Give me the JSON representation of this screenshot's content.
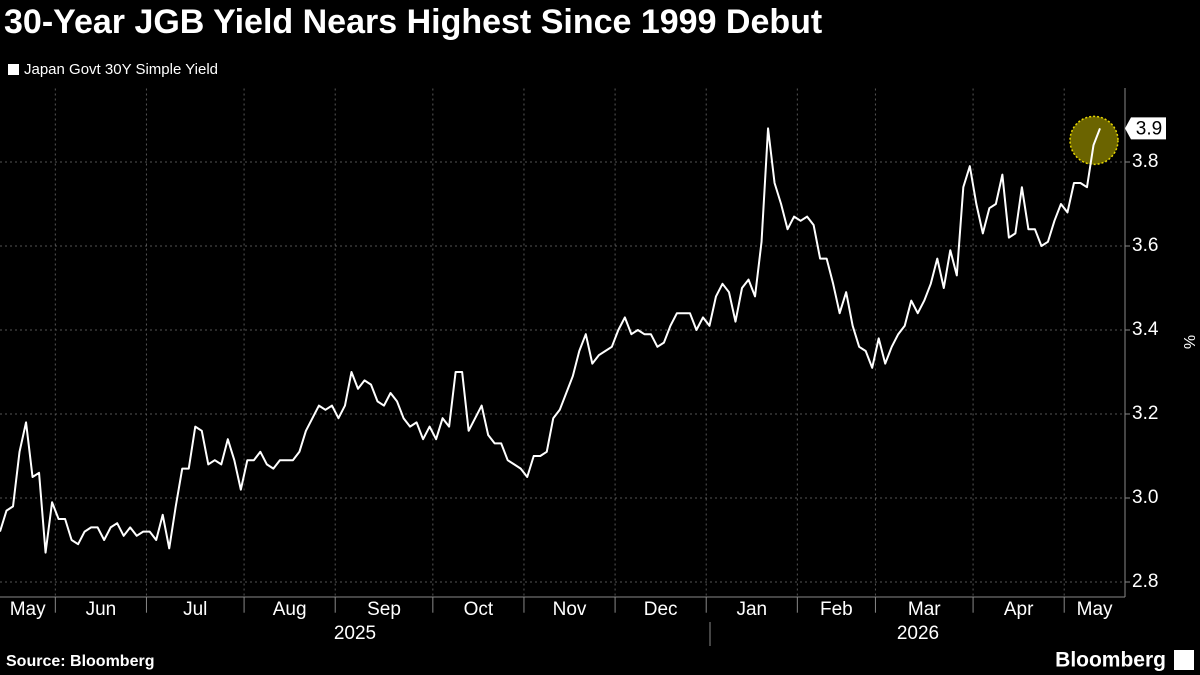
{
  "chart_data": {
    "type": "line",
    "title": "30-Year JGB Yield Nears Highest Since 1999 Debut",
    "y_label": "%",
    "source": "Source: Bloomberg",
    "brand": "Bloomberg",
    "years": [
      "2025",
      "2026"
    ],
    "categories": [
      "May",
      null,
      null,
      null,
      null,
      null,
      null,
      null,
      null,
      "Jun",
      null,
      null,
      null,
      null,
      null,
      null,
      null,
      null,
      null,
      null,
      null,
      null,
      null,
      "Jul",
      null,
      null,
      null,
      null,
      null,
      null,
      null,
      null,
      null,
      null,
      null,
      null,
      null,
      null,
      "Aug",
      null,
      null,
      null,
      null,
      null,
      null,
      null,
      null,
      null,
      null,
      null,
      null,
      null,
      "Sep",
      null,
      null,
      null,
      null,
      null,
      null,
      null,
      null,
      null,
      null,
      null,
      null,
      null,
      null,
      "Oct",
      null,
      null,
      null,
      null,
      null,
      null,
      null,
      null,
      null,
      null,
      null,
      null,
      null,
      "Nov",
      null,
      null,
      null,
      null,
      null,
      null,
      null,
      null,
      null,
      null,
      null,
      null,
      null,
      "Dec",
      null,
      null,
      null,
      null,
      null,
      null,
      null,
      null,
      null,
      null,
      null,
      null,
      null,
      "Jan",
      null,
      null,
      null,
      null,
      null,
      null,
      null,
      null,
      null,
      null,
      null,
      null,
      null,
      "Feb",
      null,
      null,
      null,
      null,
      null,
      null,
      null,
      null,
      null,
      null,
      null,
      "Mar",
      null,
      null,
      null,
      null,
      null,
      null,
      null,
      null,
      null,
      null,
      null,
      null,
      null,
      null,
      "Apr",
      null,
      null,
      null,
      null,
      null,
      null,
      null,
      null,
      null,
      null,
      null,
      null,
      null,
      "May",
      null,
      null,
      null,
      null,
      null
    ],
    "series": [
      {
        "name": "Japan Govt 30Y Simple Yield",
        "color": "#ffffff",
        "values": [
          2.92,
          2.97,
          2.98,
          3.11,
          3.18,
          3.05,
          3.06,
          2.87,
          2.99,
          2.95,
          2.95,
          2.9,
          2.89,
          2.92,
          2.93,
          2.93,
          2.9,
          2.93,
          2.94,
          2.91,
          2.93,
          2.91,
          2.92,
          2.92,
          2.9,
          2.96,
          2.88,
          2.98,
          3.07,
          3.07,
          3.17,
          3.16,
          3.08,
          3.09,
          3.08,
          3.14,
          3.09,
          3.02,
          3.09,
          3.09,
          3.11,
          3.08,
          3.07,
          3.09,
          3.09,
          3.09,
          3.11,
          3.16,
          3.19,
          3.22,
          3.21,
          3.22,
          3.19,
          3.22,
          3.3,
          3.26,
          3.28,
          3.27,
          3.23,
          3.22,
          3.25,
          3.23,
          3.19,
          3.17,
          3.18,
          3.14,
          3.17,
          3.14,
          3.19,
          3.17,
          3.3,
          3.3,
          3.16,
          3.19,
          3.22,
          3.15,
          3.13,
          3.13,
          3.09,
          3.08,
          3.07,
          3.05,
          3.1,
          3.1,
          3.11,
          3.19,
          3.21,
          3.25,
          3.29,
          3.35,
          3.39,
          3.32,
          3.34,
          3.35,
          3.36,
          3.4,
          3.43,
          3.39,
          3.4,
          3.39,
          3.39,
          3.36,
          3.37,
          3.41,
          3.44,
          3.44,
          3.44,
          3.4,
          3.43,
          3.41,
          3.48,
          3.51,
          3.49,
          3.42,
          3.5,
          3.52,
          3.48,
          3.61,
          3.88,
          3.75,
          3.7,
          3.64,
          3.67,
          3.66,
          3.67,
          3.65,
          3.57,
          3.57,
          3.51,
          3.44,
          3.49,
          3.41,
          3.36,
          3.35,
          3.31,
          3.38,
          3.32,
          3.36,
          3.39,
          3.41,
          3.47,
          3.44,
          3.47,
          3.51,
          3.57,
          3.5,
          3.59,
          3.53,
          3.74,
          3.79,
          3.7,
          3.63,
          3.69,
          3.7,
          3.77,
          3.62,
          3.63,
          3.74,
          3.64,
          3.64,
          3.6,
          3.61,
          3.66,
          3.7,
          3.68,
          3.75,
          3.75,
          3.74,
          3.84,
          3.88
        ],
        "value_labels": [
          null,
          null,
          null,
          null,
          null,
          null,
          null,
          null,
          null,
          null,
          null,
          null,
          null,
          null,
          null,
          null,
          null,
          null,
          null,
          null,
          null,
          null,
          null,
          null,
          null,
          null,
          null,
          null,
          null,
          null,
          null,
          null,
          null,
          null,
          null,
          null,
          null,
          null,
          null,
          null,
          null,
          null,
          null,
          null,
          null,
          null,
          null,
          null,
          null,
          null,
          null,
          null,
          null,
          null,
          null,
          null,
          null,
          null,
          null,
          null,
          null,
          null,
          null,
          null,
          null,
          null,
          null,
          null,
          null,
          null,
          null,
          null,
          null,
          null,
          null,
          null,
          null,
          null,
          null,
          null,
          null,
          null,
          null,
          null,
          null,
          null,
          null,
          null,
          null,
          null,
          null,
          null,
          null,
          null,
          null,
          null,
          null,
          null,
          null,
          null,
          null,
          null,
          null,
          null,
          null,
          null,
          null,
          null,
          null,
          null,
          null,
          null,
          null,
          null,
          null,
          null,
          null,
          null,
          null,
          null,
          null,
          null,
          null,
          null,
          null,
          null,
          null,
          null,
          null,
          null,
          null,
          null,
          null,
          null,
          null,
          null,
          null,
          null,
          null,
          null,
          null,
          null,
          null,
          null,
          null,
          null,
          null,
          null,
          null,
          null,
          null,
          null,
          null,
          null,
          null,
          null,
          null,
          null,
          null,
          null,
          null,
          null,
          null,
          null,
          null,
          null,
          null,
          null,
          null,
          "3.9"
        ]
      }
    ],
    "highlight_color": "#6b6400",
    "ylim": [
      2.765,
      3.975
    ],
    "yticks": [
      2.8,
      {
        "value": 3,
        "label": "3.0"
      },
      3.2,
      3.4,
      3.6,
      3.8
    ],
    "grid": true
  }
}
